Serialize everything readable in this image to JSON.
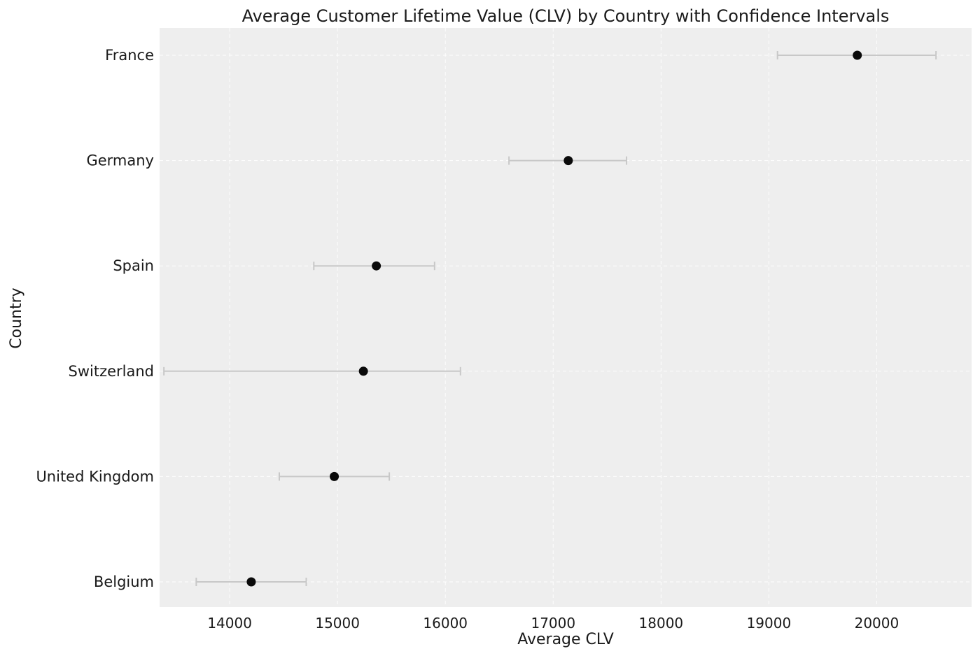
{
  "chart_data": {
    "type": "scatter",
    "title": "Average Customer Lifetime Value (CLV) by Country with Confidence Intervals",
    "xlabel": "Average CLV",
    "ylabel": "Country",
    "xlim": [
      13350,
      20880
    ],
    "xticks": [
      14000,
      15000,
      16000,
      17000,
      18000,
      19000,
      20000
    ],
    "grid": true,
    "categories": [
      "France",
      "Germany",
      "Spain",
      "Switzerland",
      "United Kingdom",
      "Belgium"
    ],
    "series": [
      {
        "values": [
          19820,
          17140,
          15360,
          15240,
          14970,
          14200
        ],
        "ci_lower": [
          19080,
          16590,
          14780,
          13390,
          14460,
          13690
        ],
        "ci_upper": [
          20550,
          17680,
          15900,
          16140,
          15480,
          14710
        ]
      }
    ],
    "colors": {
      "background": "#eeeeee",
      "point": "#0a0a0a",
      "errorbar": "#c8c8c8",
      "grid": "#ffffff"
    }
  }
}
